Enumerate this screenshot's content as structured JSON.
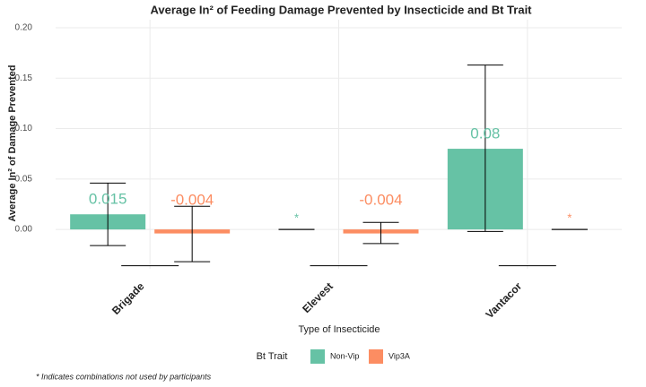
{
  "chart_data": {
    "type": "bar",
    "title": "Average In² of Feeding Damage Prevented by Insecticide and Bt Trait",
    "x_label": "Type of Insecticide",
    "y_label": "Average In² of Damage Prevented",
    "legend_title": "Bt Trait",
    "caption": "* Indicates combinations not used by participants",
    "categories": [
      "Brigade",
      "Elevest",
      "Vantacor"
    ],
    "series": [
      {
        "name": "Non-Vip",
        "color": "#66c2a5",
        "values": [
          0.015,
          null,
          0.08
        ],
        "value_labels": [
          "0.015",
          "*",
          "0.08"
        ],
        "lower": [
          -0.016,
          0,
          -0.002
        ],
        "upper": [
          0.046,
          0,
          0.163
        ]
      },
      {
        "name": "Vip3A",
        "color": "#fc8d62",
        "values": [
          -0.004,
          -0.004,
          null
        ],
        "value_labels": [
          "-0.004",
          "-0.004",
          "*"
        ],
        "lower": [
          -0.032,
          -0.014,
          0
        ],
        "upper": [
          0.023,
          0.007,
          0
        ]
      }
    ],
    "reference_segments": [
      -0.036,
      -0.036,
      -0.036
    ],
    "ylim": [
      -0.039,
      0.208
    ],
    "yticks": [
      {
        "value": 0,
        "label": "0.00"
      },
      0.05,
      {
        "value": 0.1,
        "label": "0.10"
      },
      0.15,
      {
        "value": 0.2,
        "label": "0.20"
      }
    ],
    "grid": true
  }
}
